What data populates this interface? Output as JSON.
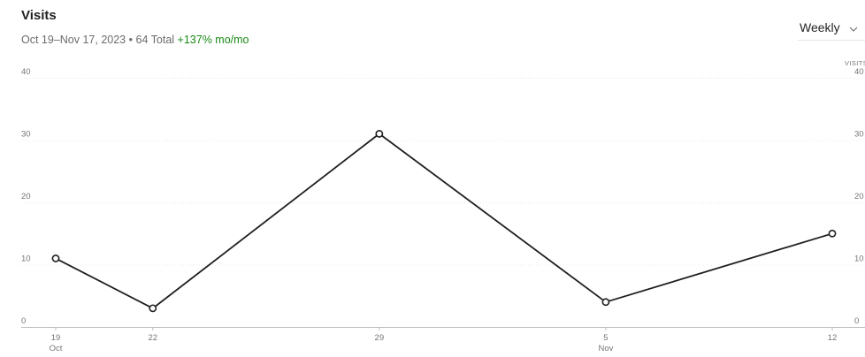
{
  "header": {
    "title": "Visits",
    "date_range": "Oct 19–Nov 17, 2023",
    "separator": "•",
    "total": "64 Total",
    "change": "+137% mo/mo"
  },
  "period_select": {
    "label": "Weekly",
    "icon": "chevron-down-icon"
  },
  "colors": {
    "line": "#1f1f1f",
    "grid": "#e8e8e8",
    "axis_text": "#757575",
    "change": "#1a8917"
  },
  "chart_data": {
    "type": "line",
    "ylabel": "VISITS",
    "ylim": [
      0,
      40
    ],
    "y_ticks": [
      "0",
      "10",
      "20",
      "30",
      "40"
    ],
    "x_ticks": [
      {
        "day": "19",
        "month": "Oct"
      },
      {
        "day": "22",
        "month": ""
      },
      {
        "day": "29",
        "month": ""
      },
      {
        "day": "5",
        "month": "Nov"
      },
      {
        "day": "12",
        "month": ""
      }
    ],
    "x": [
      "2023-10-19",
      "2023-10-22",
      "2023-10-29",
      "2023-11-05",
      "2023-11-12"
    ],
    "series": [
      {
        "values": [
          11,
          3,
          31,
          4,
          15
        ]
      }
    ],
    "grid": true
  }
}
